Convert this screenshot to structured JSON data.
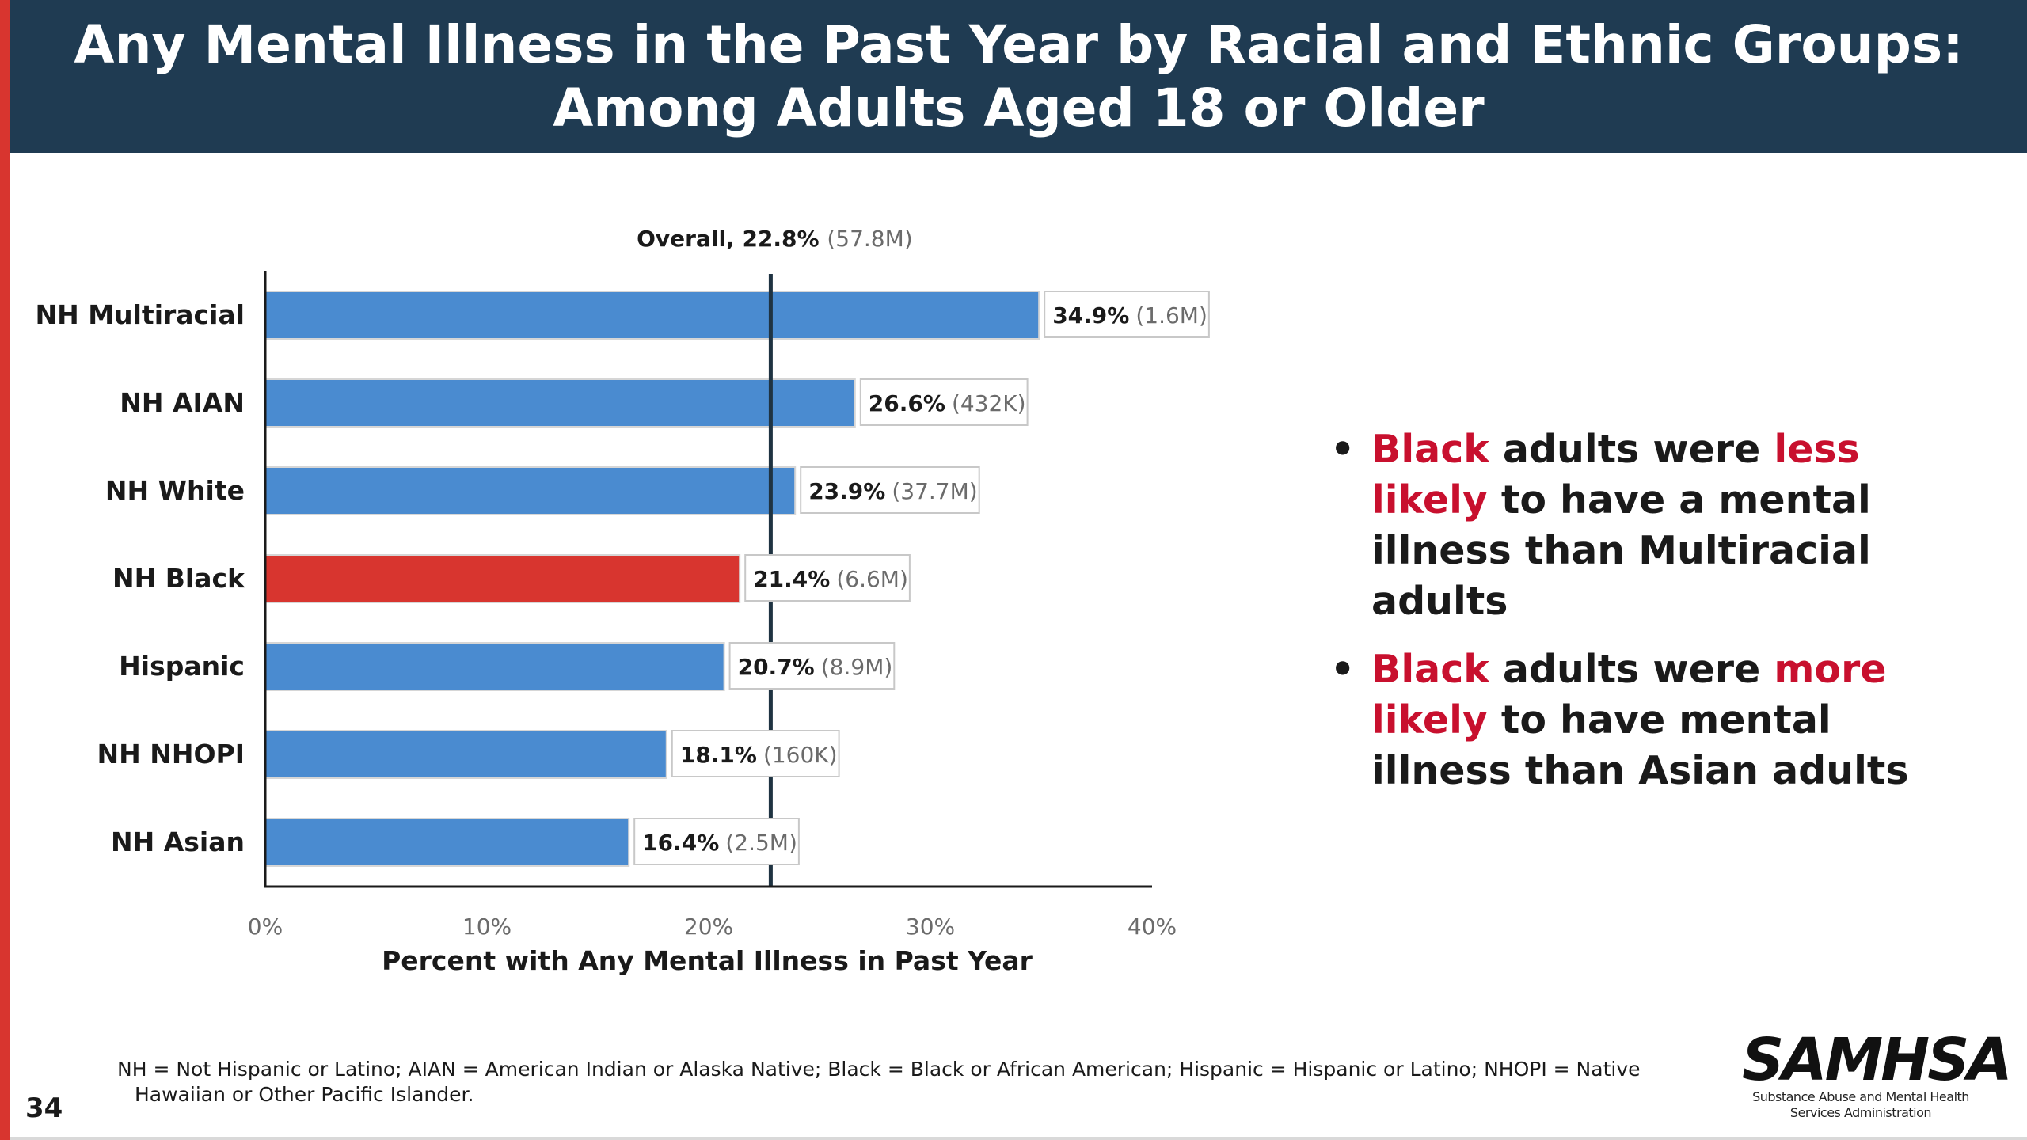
{
  "header": {
    "title_line1": "Any Mental Illness in the Past Year by Racial and Ethnic Groups:",
    "title_line2": "Among Adults Aged 18 or Older"
  },
  "chart_data": {
    "type": "bar",
    "orientation": "horizontal",
    "categories": [
      "NH Multiracial",
      "NH AIAN",
      "NH White",
      "NH Black",
      "Hispanic",
      "NH NHOPI",
      "NH Asian"
    ],
    "values": [
      34.9,
      26.6,
      23.9,
      21.4,
      20.7,
      18.1,
      16.4
    ],
    "value_labels": [
      "34.9%",
      "26.6%",
      "23.9%",
      "21.4%",
      "20.7%",
      "18.1%",
      "16.4%"
    ],
    "count_labels": [
      "(1.6M)",
      "(432K)",
      "(37.7M)",
      "(6.6M)",
      "(8.9M)",
      "(160K)",
      "(2.5M)"
    ],
    "highlight": "NH Black",
    "colors": {
      "bar": "#4a8bd0",
      "highlight": "#d8352f",
      "reference_line": "#1f3342"
    },
    "reference_line": {
      "value": 22.8,
      "label": "Overall, 22.8%",
      "count": "(57.8M)"
    },
    "xlim": [
      0,
      40
    ],
    "ticks": [
      0,
      10,
      20,
      30,
      40
    ],
    "tick_labels": [
      "0%",
      "10%",
      "20%",
      "30%",
      "40%"
    ],
    "xlabel": "Percent with Any Mental Illness in Past Year",
    "grid": false,
    "legend": "none"
  },
  "bullets": [
    {
      "w1": "Black",
      "w2": " adults were ",
      "w3": "less likely",
      "w4": " to have a mental illness than Multiracial adults"
    },
    {
      "w1": "Black",
      "w2": " adults were ",
      "w3": "more likely",
      "w4": " to have mental illness than Asian adults"
    }
  ],
  "bullet_symbol": "•",
  "footnote": "NH = Not Hispanic or Latino; AIAN = American Indian or Alaska Native; Black = Black or African American; Hispanic = Hispanic or Latino; NHOPI = Native Hawaiian or Other Pacific Islander.",
  "page_number": "34",
  "logo": {
    "wordmark": "SAMHSA",
    "subtitle_line1": "Substance Abuse and Mental Health",
    "subtitle_line2": "Services Administration"
  }
}
